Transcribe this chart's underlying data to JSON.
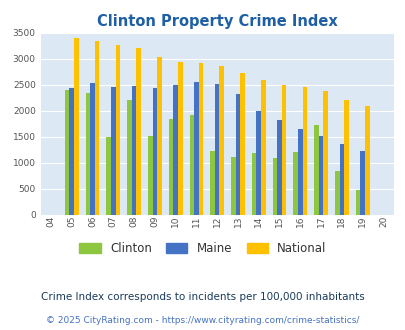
{
  "title": "Clinton Property Crime Index",
  "years": [
    2004,
    2005,
    2006,
    2007,
    2008,
    2009,
    2010,
    2011,
    2012,
    2013,
    2014,
    2015,
    2016,
    2017,
    2018,
    2019,
    2020
  ],
  "year_labels": [
    "04",
    "05",
    "06",
    "07",
    "08",
    "09",
    "10",
    "11",
    "12",
    "13",
    "14",
    "15",
    "16",
    "17",
    "18",
    "19",
    "20"
  ],
  "clinton": [
    null,
    2400,
    2350,
    1500,
    2200,
    1520,
    1850,
    1920,
    1220,
    1100,
    1190,
    1080,
    1210,
    1720,
    840,
    470,
    null
  ],
  "maine": [
    null,
    2430,
    2540,
    2460,
    2480,
    2430,
    2490,
    2560,
    2510,
    2320,
    1990,
    1820,
    1640,
    1510,
    1350,
    1230,
    null
  ],
  "national": [
    null,
    3410,
    3340,
    3260,
    3210,
    3040,
    2950,
    2920,
    2860,
    2730,
    2590,
    2490,
    2460,
    2380,
    2210,
    2100,
    null
  ],
  "clinton_color": "#8dc63f",
  "maine_color": "#4472c4",
  "national_color": "#ffc000",
  "bg_color": "#dce9f5",
  "ylim": [
    0,
    3500
  ],
  "yticks": [
    0,
    500,
    1000,
    1500,
    2000,
    2500,
    3000,
    3500
  ],
  "subtitle": "Crime Index corresponds to incidents per 100,000 inhabitants",
  "footer": "© 2025 CityRating.com - https://www.cityrating.com/crime-statistics/",
  "title_color": "#1f5fa6",
  "subtitle_color": "#1a3a5c",
  "footer_color": "#4472c4"
}
